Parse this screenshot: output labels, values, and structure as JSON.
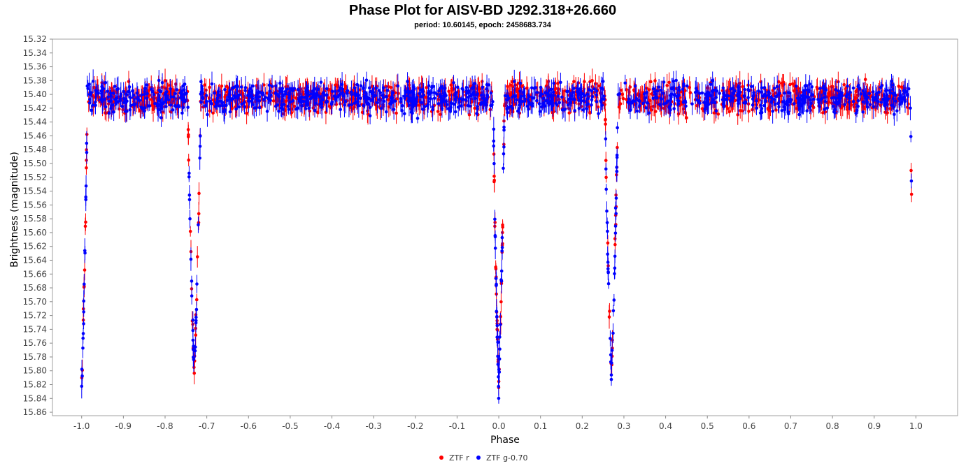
{
  "chart_data": {
    "type": "scatter",
    "title": "Phase Plot for AISV-BD J292.318+26.660",
    "subtitle": "period: 10.60145, epoch: 2458683.734",
    "xlabel": "Phase",
    "ylabel": "Brightness (magnitude)",
    "xlim": [
      -1.07,
      1.1
    ],
    "ylim": [
      15.32,
      15.865
    ],
    "y_inverted": true,
    "grid": false,
    "legend_position": "bottom",
    "x_ticks": [
      "-1.0",
      "-0.9",
      "-0.8",
      "-0.7",
      "-0.6",
      "-0.5",
      "-0.4",
      "-0.3",
      "-0.2",
      "-0.1",
      "0.0",
      "0.1",
      "0.2",
      "0.3",
      "0.4",
      "0.5",
      "0.6",
      "0.7",
      "0.8",
      "0.9",
      "1.0"
    ],
    "y_ticks": [
      "15.32",
      "15.34",
      "15.36",
      "15.38",
      "15.40",
      "15.42",
      "15.44",
      "15.46",
      "15.48",
      "15.50",
      "15.52",
      "15.54",
      "15.56",
      "15.58",
      "15.60",
      "15.62",
      "15.64",
      "15.66",
      "15.68",
      "15.70",
      "15.72",
      "15.74",
      "15.76",
      "15.78",
      "15.80",
      "15.82",
      "15.84",
      "15.86"
    ],
    "baseline_magnitude": 15.405,
    "scatter_magnitude": 0.02,
    "typical_error": 0.012,
    "eclipses": [
      {
        "name": "primary",
        "phase_center": 0.0,
        "half_width": 0.013,
        "min_magnitude": 15.83
      },
      {
        "name": "secondary",
        "phase_center": 0.27,
        "half_width": 0.015,
        "min_magnitude": 15.81
      }
    ],
    "points_per_series": 1200,
    "series": [
      {
        "name": "ZTF r",
        "color": "#ff0000"
      },
      {
        "name": "ZTF g-0.70",
        "color": "#0000ff"
      }
    ]
  }
}
